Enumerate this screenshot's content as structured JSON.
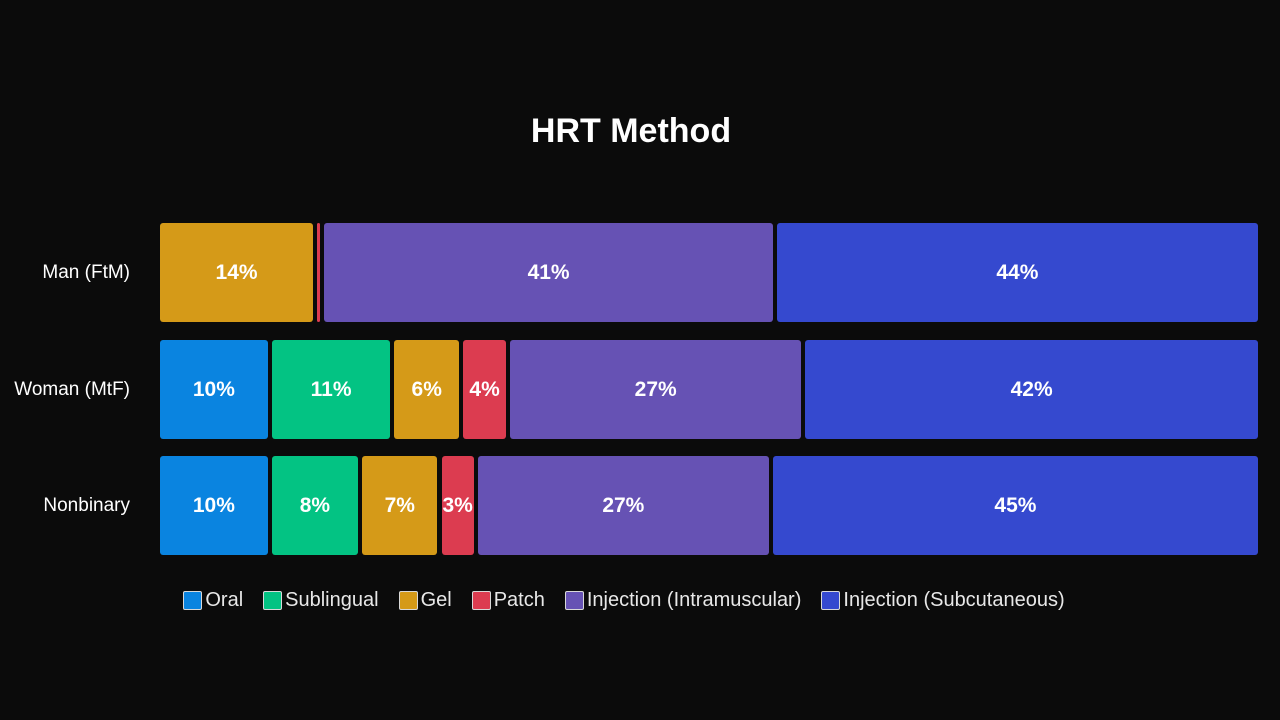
{
  "chart_data": {
    "type": "bar",
    "orientation": "horizontal",
    "stacked": true,
    "normalized": true,
    "title": "HRT Method",
    "xlabel": "",
    "ylabel": "",
    "grid": false,
    "legend_position": "bottom",
    "categories": [
      "Man (FtM)",
      "Woman (MtF)",
      "Nonbinary"
    ],
    "series": [
      {
        "name": "Oral",
        "color": "#0a84e0",
        "values": [
          0,
          10,
          10
        ],
        "labels": [
          "",
          "10%",
          "10%"
        ]
      },
      {
        "name": "Sublingual",
        "color": "#03c383",
        "values": [
          0,
          11,
          8
        ],
        "labels": [
          "",
          "11%",
          "8%"
        ]
      },
      {
        "name": "Gel",
        "color": "#d59a18",
        "values": [
          14,
          6,
          7
        ],
        "labels": [
          "14%",
          "6%",
          "7%"
        ]
      },
      {
        "name": "Patch",
        "color": "#dc3c50",
        "values": [
          0.3,
          4,
          3
        ],
        "labels": [
          "",
          "4%",
          "3%"
        ]
      },
      {
        "name": "Injection (Intramuscular)",
        "color": "#6652b4",
        "values": [
          41,
          27,
          27
        ],
        "labels": [
          "41%",
          "27%",
          "27%"
        ]
      },
      {
        "name": "Injection (Subcutaneous)",
        "color": "#3549cf",
        "values": [
          44,
          42,
          45
        ],
        "labels": [
          "44%",
          "42%",
          "45%"
        ]
      }
    ]
  }
}
